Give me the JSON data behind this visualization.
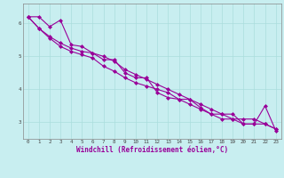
{
  "xlabel": "Windchill (Refroidissement éolien,°C)",
  "background_color": "#c8eef0",
  "line_color": "#990099",
  "marker": "D",
  "markersize": 2,
  "linewidth": 0.8,
  "xlim": [
    -0.5,
    23.5
  ],
  "ylim": [
    2.5,
    6.6
  ],
  "xticks": [
    0,
    1,
    2,
    3,
    4,
    5,
    6,
    7,
    8,
    9,
    10,
    11,
    12,
    13,
    14,
    15,
    16,
    17,
    18,
    19,
    20,
    21,
    22,
    23
  ],
  "yticks": [
    3,
    4,
    5,
    6
  ],
  "grid_color": "#aadddd",
  "series": [
    [
      6.2,
      6.2,
      5.9,
      6.1,
      5.35,
      5.3,
      5.1,
      4.9,
      4.9,
      4.5,
      4.35,
      4.35,
      3.9,
      3.75,
      3.7,
      3.7,
      3.45,
      3.25,
      3.25,
      3.25,
      2.95,
      2.95,
      3.5,
      2.75
    ],
    [
      6.2,
      5.85,
      5.6,
      5.4,
      5.25,
      5.15,
      5.1,
      5.0,
      4.85,
      4.6,
      4.45,
      4.3,
      4.15,
      4.0,
      3.85,
      3.7,
      3.55,
      3.4,
      3.25,
      3.1,
      2.95,
      2.95,
      2.95,
      2.8
    ],
    [
      6.2,
      5.85,
      5.55,
      5.3,
      5.15,
      5.05,
      4.95,
      4.7,
      4.55,
      4.35,
      4.2,
      4.1,
      4.0,
      3.9,
      3.7,
      3.55,
      3.4,
      3.25,
      3.1,
      3.1,
      3.1,
      3.1,
      2.95,
      2.8
    ]
  ]
}
